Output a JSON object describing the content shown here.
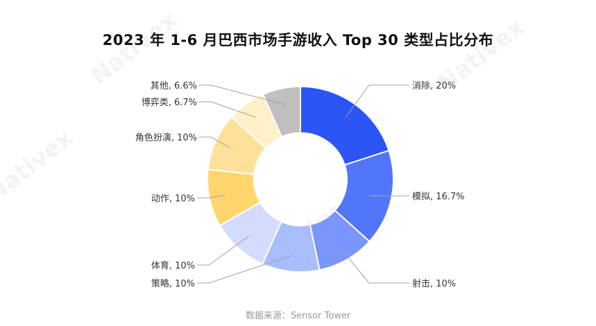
{
  "watermark": "Nativex",
  "source": "数据来源：Sensor Tower",
  "chart_data": {
    "type": "pie",
    "variant": "donut",
    "title": "2023 年 1-6 月巴西市场手游收入 Top 30 类型占比分布",
    "slices": [
      {
        "label": "消除, 20%",
        "value": 20,
        "color": "#2b55f5"
      },
      {
        "label": "模拟, 16.7%",
        "value": 16.7,
        "color": "#5276fb"
      },
      {
        "label": "射击, 10%",
        "value": 10,
        "color": "#7a95fb"
      },
      {
        "label": "策略, 10%",
        "value": 10,
        "color": "#a9bcfc"
      },
      {
        "label": "体育, 10%",
        "value": 10,
        "color": "#d4dcfd"
      },
      {
        "label": "动作, 10%",
        "value": 10,
        "color": "#ffd66e"
      },
      {
        "label": "角色扮演, 10%",
        "value": 10,
        "color": "#ffe09a"
      },
      {
        "label": "博弈类, 6.7%",
        "value": 6.7,
        "color": "#fff0c8"
      },
      {
        "label": "其他, 6.6%",
        "value": 6.6,
        "color": "#bfbfbf"
      }
    ]
  }
}
